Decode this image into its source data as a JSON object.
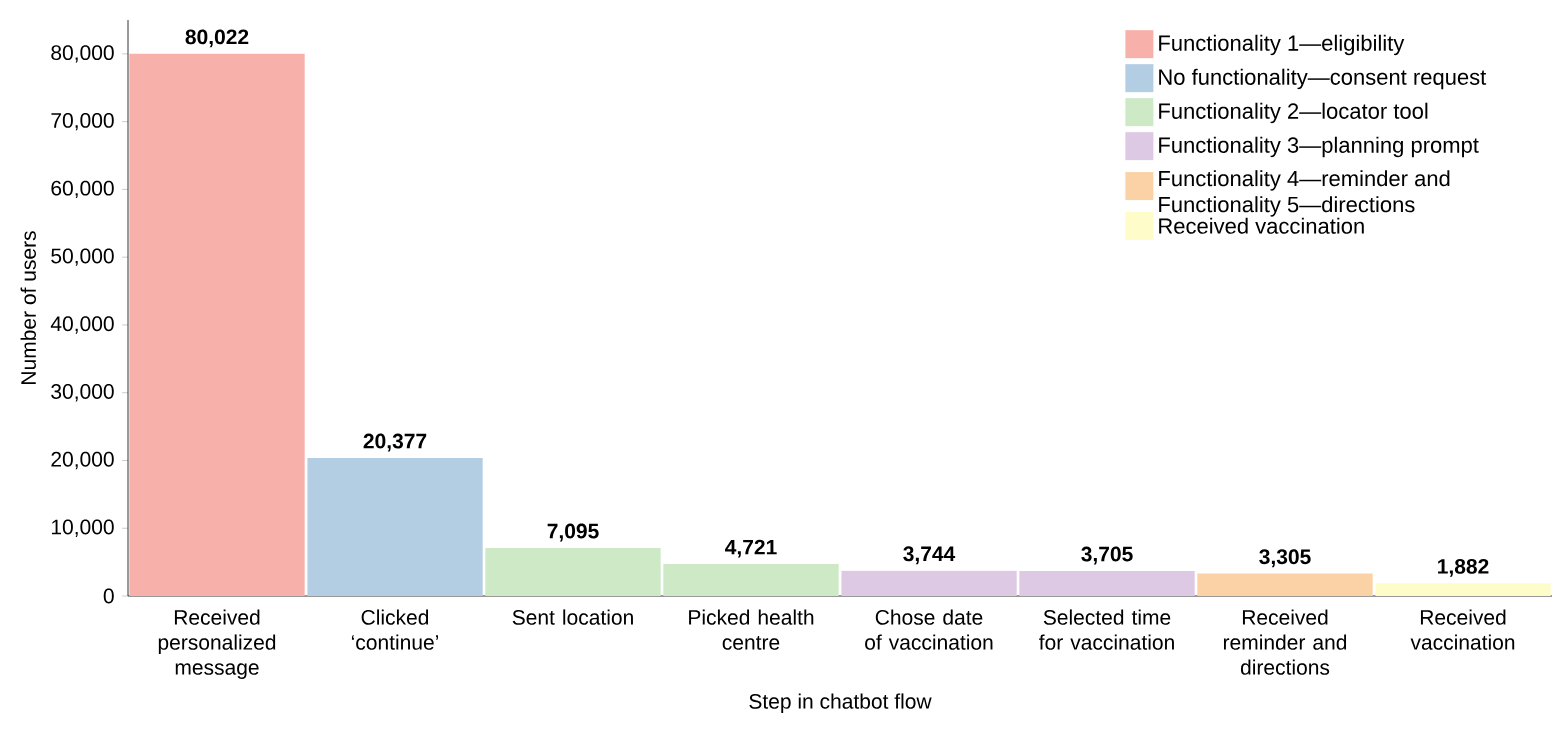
{
  "chart_data": {
    "type": "bar",
    "xlabel": "Step in chatbot flow",
    "ylabel": "Number of users",
    "categories": [
      "Received personalized message",
      "Clicked ‘continue’",
      "Sent location",
      "Picked health centre",
      "Chose date of vaccination",
      "Selected time for vaccination",
      "Received reminder and directions",
      "Received vaccination"
    ],
    "series": [
      {
        "name": "Functionality 1—eligibility",
        "color": "#f8b1aa",
        "values": [
          80022,
          null,
          null,
          null,
          null,
          null,
          null,
          null
        ],
        "value_labels": [
          "80,022",
          null,
          null,
          null,
          null,
          null,
          null,
          null
        ]
      },
      {
        "name": "No functionality—consent request",
        "color": "#b3cde3",
        "values": [
          null,
          20377,
          null,
          null,
          null,
          null,
          null,
          null
        ],
        "value_labels": [
          null,
          "20,377",
          null,
          null,
          null,
          null,
          null,
          null
        ]
      },
      {
        "name": "Functionality 2—locator tool",
        "color": "#cde9c5",
        "values": [
          null,
          null,
          7095,
          4721,
          null,
          null,
          null,
          null
        ],
        "value_labels": [
          null,
          null,
          "7,095",
          "4,721",
          null,
          null,
          null,
          null
        ]
      },
      {
        "name": "Functionality 3—planning prompt",
        "color": "#ddc9e3",
        "values": [
          null,
          null,
          null,
          null,
          3744,
          3705,
          null,
          null
        ],
        "value_labels": [
          null,
          null,
          null,
          null,
          "3,744",
          "3,705",
          null,
          null
        ]
      },
      {
        "name": "Functionality 4—reminder and Functionality 5—directions",
        "color": "#fbd2a5",
        "values": [
          null,
          null,
          null,
          null,
          null,
          null,
          3305,
          null
        ],
        "value_labels": [
          null,
          null,
          null,
          null,
          null,
          null,
          "3,305",
          null
        ]
      },
      {
        "name": "Received vaccination",
        "color": "#fefdc9",
        "values": [
          null,
          null,
          null,
          null,
          null,
          null,
          null,
          1882
        ],
        "value_labels": [
          null,
          null,
          null,
          null,
          null,
          null,
          null,
          "1,882"
        ]
      }
    ],
    "ylim": [
      0,
      85000
    ],
    "yticks": [
      {
        "value": 0,
        "label": "0"
      },
      {
        "value": 10000,
        "label": "10,000"
      },
      {
        "value": 20000,
        "label": "20,000"
      },
      {
        "value": 30000,
        "label": "30,000"
      },
      {
        "value": 40000,
        "label": "40,000"
      },
      {
        "value": 50000,
        "label": "50,000"
      },
      {
        "value": 60000,
        "label": "60,000"
      },
      {
        "value": 70000,
        "label": "70,000"
      },
      {
        "value": 80000,
        "label": "80,000"
      }
    ],
    "grid": false,
    "legend": "top right"
  }
}
